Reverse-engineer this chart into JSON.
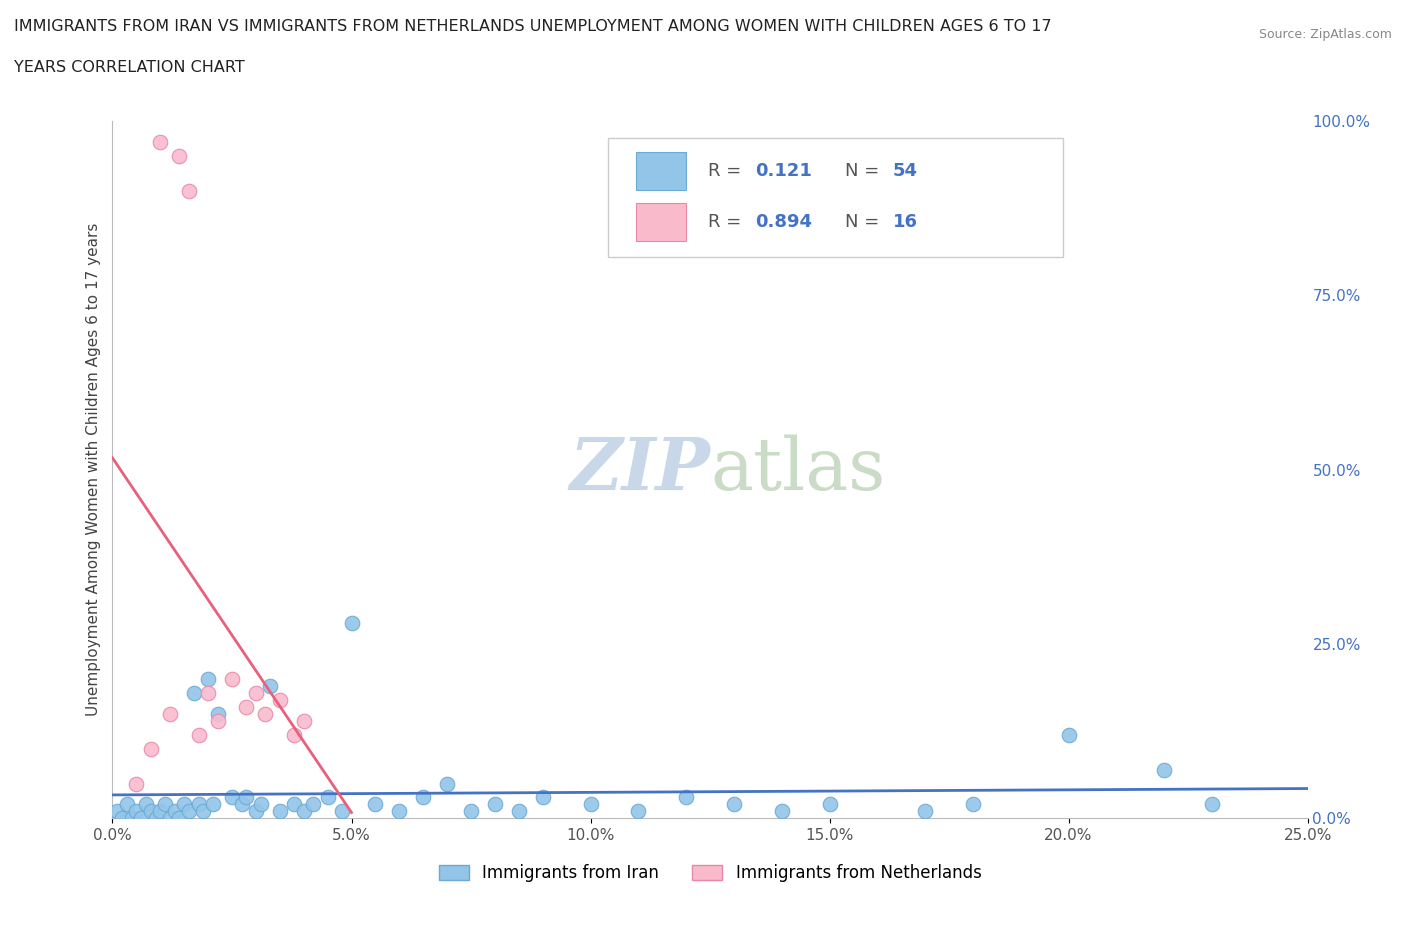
{
  "title_line1": "IMMIGRANTS FROM IRAN VS IMMIGRANTS FROM NETHERLANDS UNEMPLOYMENT AMONG WOMEN WITH CHILDREN AGES 6 TO 17",
  "title_line2": "YEARS CORRELATION CHART",
  "source": "Source: ZipAtlas.com",
  "ylabel": "Unemployment Among Women with Children Ages 6 to 17 years",
  "xlim": [
    0.0,
    0.25
  ],
  "ylim": [
    0.0,
    1.0
  ],
  "x_ticks": [
    0.0,
    0.05,
    0.1,
    0.15,
    0.2,
    0.25
  ],
  "x_tick_labels": [
    "0.0%",
    "5.0%",
    "10.0%",
    "15.0%",
    "20.0%",
    "25.0%"
  ],
  "y_ticks_right": [
    0.0,
    0.25,
    0.5,
    0.75,
    1.0
  ],
  "y_tick_labels_right": [
    "0.0%",
    "25.0%",
    "50.0%",
    "75.0%",
    "100.0%"
  ],
  "iran_color": "#92C5E8",
  "iran_edge_color": "#6AAAD4",
  "netherlands_color": "#F9BBCC",
  "netherlands_edge_color": "#E888A8",
  "iran_line_color": "#4472C4",
  "netherlands_line_color": "#E8607A",
  "iran_R": 0.121,
  "iran_N": 54,
  "netherlands_R": 0.894,
  "netherlands_N": 16,
  "legend_text_color": "#4472C4",
  "watermark_color": "#C8D8E8",
  "background_color": "#ffffff",
  "grid_color": "#d0d0d0",
  "iran_x": [
    0.001,
    0.002,
    0.003,
    0.004,
    0.005,
    0.006,
    0.007,
    0.008,
    0.009,
    0.01,
    0.011,
    0.012,
    0.013,
    0.014,
    0.015,
    0.016,
    0.017,
    0.018,
    0.019,
    0.02,
    0.021,
    0.022,
    0.025,
    0.027,
    0.028,
    0.03,
    0.031,
    0.033,
    0.035,
    0.038,
    0.04,
    0.042,
    0.045,
    0.048,
    0.05,
    0.055,
    0.06,
    0.065,
    0.07,
    0.075,
    0.08,
    0.085,
    0.09,
    0.1,
    0.11,
    0.12,
    0.13,
    0.14,
    0.15,
    0.17,
    0.18,
    0.2,
    0.22,
    0.23
  ],
  "iran_y": [
    0.01,
    0.0,
    0.02,
    0.0,
    0.01,
    0.0,
    0.02,
    0.01,
    0.0,
    0.01,
    0.02,
    0.0,
    0.01,
    0.0,
    0.02,
    0.01,
    0.18,
    0.02,
    0.01,
    0.2,
    0.02,
    0.15,
    0.03,
    0.02,
    0.03,
    0.01,
    0.02,
    0.19,
    0.01,
    0.02,
    0.01,
    0.02,
    0.03,
    0.01,
    0.28,
    0.02,
    0.01,
    0.03,
    0.05,
    0.01,
    0.02,
    0.01,
    0.03,
    0.02,
    0.01,
    0.03,
    0.02,
    0.01,
    0.02,
    0.01,
    0.02,
    0.12,
    0.07,
    0.02
  ],
  "netherlands_x": [
    0.005,
    0.008,
    0.01,
    0.012,
    0.014,
    0.016,
    0.018,
    0.02,
    0.022,
    0.025,
    0.028,
    0.03,
    0.032,
    0.035,
    0.038,
    0.04
  ],
  "netherlands_y": [
    0.05,
    0.1,
    0.97,
    0.15,
    0.95,
    0.9,
    0.12,
    0.18,
    0.14,
    0.2,
    0.16,
    0.18,
    0.15,
    0.17,
    0.12,
    0.14
  ]
}
